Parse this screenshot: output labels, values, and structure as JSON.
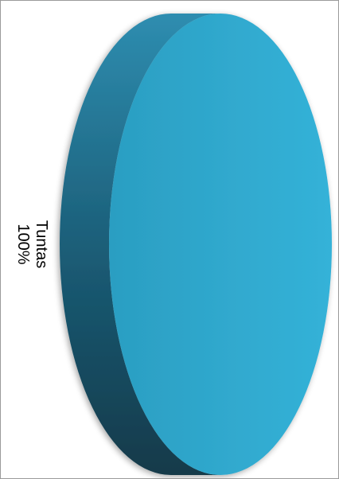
{
  "chart_data": {
    "type": "pie",
    "style": "3d",
    "orientation": "rotated-90",
    "slices": [
      {
        "label": "Tuntas",
        "value": 100,
        "percent_label": "100%",
        "color": "#2fa9ce"
      }
    ],
    "colors": {
      "top_face_light": "#34b2d8",
      "top_face_dark": "#2b9ec2",
      "side_light": "#2e8db0",
      "side_dark": "#123a4a"
    }
  }
}
